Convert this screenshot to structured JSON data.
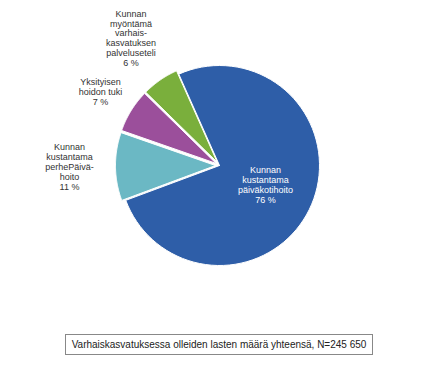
{
  "chart_data": {
    "type": "pie",
    "categories": [
      "Kunnan\nkustantama\npäiväkotihoito",
      "Kunnan\nkustantama\nperhePäivä-\nhoito",
      "Yksityisen\nhoidon tuki",
      "Kunnan\nmyöntämä\nvarhais-\nkasvatuksen\npalveluseteli"
    ],
    "values": [
      76,
      11,
      7,
      6
    ],
    "value_labels": [
      "76 %",
      "11 %",
      "7 %",
      "6 %"
    ],
    "colors": [
      "#2E5EA8",
      "#6BB8C4",
      "#9B4F9B",
      "#7AAF3C"
    ],
    "data_labels": true,
    "caption": "Varhaiskasvatuksessa olleiden lasten määrä yhteensä, N=245 650"
  }
}
